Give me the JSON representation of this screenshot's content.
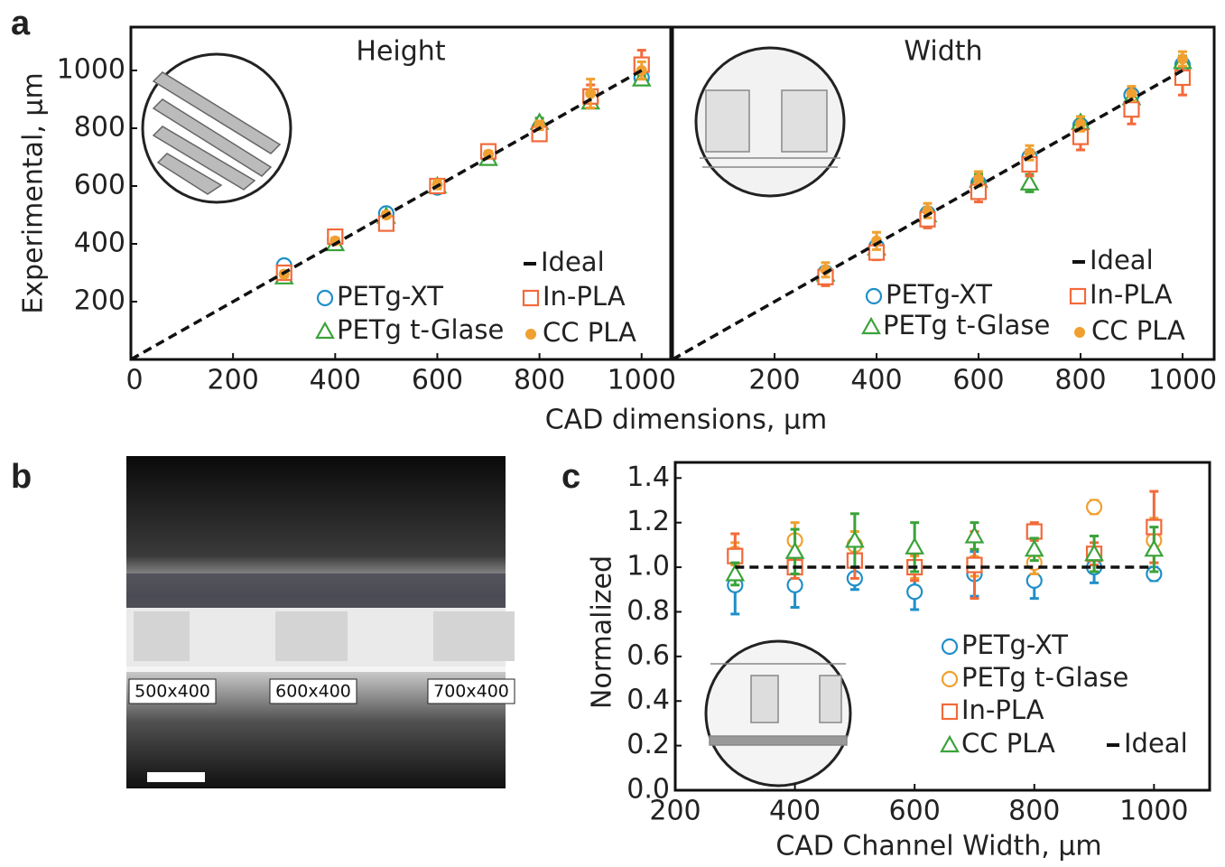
{
  "figure": {
    "panel_labels": [
      "a",
      "b",
      "c"
    ],
    "xlabel": "CAD dimensions, μm",
    "photo_labels": [
      "500x400",
      "600x400",
      "700x400"
    ]
  },
  "chart_data": [
    {
      "type": "scatter",
      "title": "Height",
      "ylabel": "Experimental, μm",
      "xlim": [
        0,
        1057
      ],
      "ylim": [
        0,
        1150
      ],
      "xticks": [
        0,
        200,
        400,
        600,
        800,
        1000
      ],
      "yticks": [
        200,
        400,
        600,
        800,
        1000
      ],
      "x": [
        300,
        400,
        500,
        600,
        700,
        800,
        900,
        1000
      ],
      "series": [
        {
          "name": "PETg-XT",
          "color": "#1f8fc8",
          "marker": "circle",
          "values": [
            325,
            415,
            505,
            595,
            705,
            800,
            895,
            975
          ],
          "errors": [
            10,
            10,
            15,
            20,
            10,
            10,
            20,
            15
          ]
        },
        {
          "name": "PETg t-Glase",
          "color": "#3aa33a",
          "marker": "triangle",
          "values": [
            285,
            400,
            495,
            600,
            695,
            820,
            890,
            970
          ],
          "errors": [
            10,
            10,
            10,
            15,
            10,
            15,
            20,
            15
          ]
        },
        {
          "name": "In-PLA",
          "color": "#f26a3b",
          "marker": "square",
          "values": [
            300,
            425,
            470,
            600,
            720,
            780,
            910,
            1020
          ],
          "errors": [
            10,
            10,
            15,
            15,
            15,
            15,
            40,
            50
          ]
        },
        {
          "name": "CC PLA",
          "color": "#f0a030",
          "marker": "dot",
          "values": [
            295,
            410,
            500,
            605,
            710,
            810,
            920,
            1000
          ],
          "errors": [
            10,
            10,
            10,
            15,
            10,
            15,
            50,
            30
          ]
        },
        {
          "name": "Ideal",
          "color": "#111111",
          "marker": "line",
          "x": [
            0,
            1000
          ],
          "values": [
            0,
            1000
          ]
        }
      ]
    },
    {
      "type": "scatter",
      "title": "Width",
      "xlim": [
        0,
        1062
      ],
      "ylim": [
        0,
        1150
      ],
      "xticks": [
        200,
        400,
        600,
        800,
        1000
      ],
      "x": [
        300,
        400,
        500,
        600,
        700,
        800,
        900,
        1000
      ],
      "series": [
        {
          "name": "PETg-XT",
          "color": "#1f8fc8",
          "marker": "circle",
          "values": [
            300,
            390,
            505,
            610,
            700,
            810,
            915,
            1020
          ],
          "errors": [
            15,
            20,
            15,
            20,
            25,
            20,
            20,
            20
          ]
        },
        {
          "name": "PETg t-Glase",
          "color": "#3aa33a",
          "marker": "triangle",
          "values": [
            295,
            385,
            500,
            620,
            610,
            820,
            905,
            1030
          ],
          "errors": [
            15,
            20,
            20,
            20,
            30,
            20,
            20,
            20
          ]
        },
        {
          "name": "In-PLA",
          "color": "#f26a3b",
          "marker": "square",
          "values": [
            285,
            370,
            485,
            580,
            675,
            770,
            865,
            975
          ],
          "errors": [
            30,
            25,
            30,
            35,
            40,
            45,
            50,
            60
          ]
        },
        {
          "name": "CC PLA",
          "color": "#f0a030",
          "marker": "dot",
          "values": [
            310,
            410,
            515,
            625,
            715,
            815,
            920,
            1040
          ],
          "errors": [
            25,
            30,
            25,
            25,
            25,
            25,
            25,
            25
          ]
        },
        {
          "name": "Ideal",
          "color": "#111111",
          "marker": "line",
          "x": [
            0,
            1000
          ],
          "values": [
            0,
            1000
          ]
        }
      ]
    },
    {
      "type": "scatter",
      "xlabel": "CAD Channel Width, μm",
      "ylabel": "Normalized",
      "xlim": [
        200,
        1093
      ],
      "ylim": [
        0,
        1.47
      ],
      "xticks": [
        200,
        400,
        600,
        800,
        1000
      ],
      "yticks": [
        {
          "value": 0,
          "label": "0.0"
        },
        0.2,
        0.4,
        0.6,
        0.8,
        {
          "value": 1,
          "label": "1.0"
        },
        1.2,
        1.4
      ],
      "x": [
        300,
        400,
        500,
        600,
        700,
        800,
        900,
        1000
      ],
      "series": [
        {
          "name": "PETg-XT",
          "color": "#1f8fc8",
          "marker": "circle",
          "values": [
            0.92,
            0.92,
            0.95,
            0.89,
            0.97,
            0.94,
            1.0,
            0.97
          ],
          "errors": [
            0.13,
            0.1,
            0.05,
            0.08,
            0.1,
            0.08,
            0.07,
            0.03
          ]
        },
        {
          "name": "PETg t-Glase",
          "color": "#f0a030",
          "marker": "circle",
          "values": [
            1.06,
            1.12,
            1.1,
            1.0,
            1.02,
            1.02,
            1.27,
            1.12
          ],
          "errors": [
            0.05,
            0.08,
            0.06,
            0.05,
            0.06,
            0.05,
            0.03,
            0.1
          ]
        },
        {
          "name": "In-PLA",
          "color": "#f26a3b",
          "marker": "square",
          "values": [
            1.05,
            1.0,
            1.03,
            1.0,
            1.01,
            1.16,
            1.06,
            1.18
          ],
          "errors": [
            0.1,
            0.05,
            0.08,
            0.06,
            0.15,
            0.04,
            0.05,
            0.16
          ]
        },
        {
          "name": "CC PLA",
          "color": "#3aa33a",
          "marker": "triangle",
          "values": [
            0.97,
            1.07,
            1.12,
            1.09,
            1.14,
            1.08,
            1.06,
            1.08
          ],
          "errors": [
            0.05,
            0.1,
            0.12,
            0.11,
            0.06,
            0.05,
            0.08,
            0.1
          ]
        },
        {
          "name": "Ideal",
          "color": "#111111",
          "marker": "line",
          "x": [
            300,
            1000
          ],
          "values": [
            1,
            1
          ]
        }
      ]
    }
  ]
}
